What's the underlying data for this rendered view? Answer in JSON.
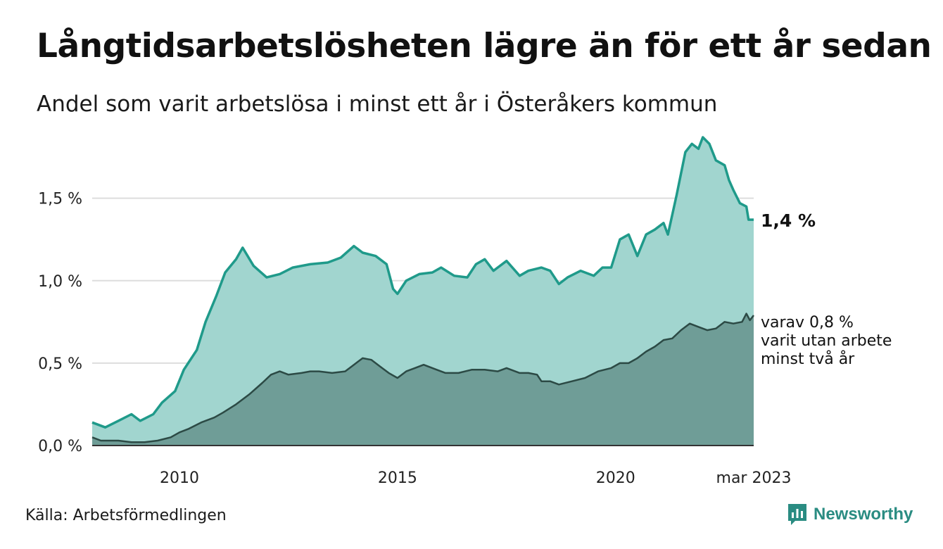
{
  "title": "Långtidsarbetslösheten lägre än för ett år sedan",
  "subtitle": "Andel som varit arbetslösa i minst ett år i Österåkers kommun",
  "source": "Källa: Arbetsförmedlingen",
  "brand": {
    "name": "Newsworthy",
    "icon": "newsworthy-logo-icon"
  },
  "colors": {
    "upper_fill": "#a1d5cf",
    "upper_line": "#1f9a8a",
    "lower_fill": "#6f9d97",
    "lower_line": "#2c4a45",
    "grid": "#dddddd",
    "baseline": "#333333",
    "brand": "#2a8c82"
  },
  "chart_data": {
    "type": "area",
    "title": "",
    "xlabel": "",
    "ylabel": "",
    "ylim": [
      0,
      1.9
    ],
    "yticks": [
      {
        "value": 0,
        "label": "0,0 %"
      },
      {
        "value": 0.5,
        "label": "0,5 %"
      },
      {
        "value": 1.0,
        "label": "1,0 %"
      },
      {
        "value": 1.5,
        "label": "1,5 %"
      }
    ],
    "xticks": [
      {
        "value": 2010.0,
        "label": "2010"
      },
      {
        "value": 2015.0,
        "label": "2015"
      },
      {
        "value": 2020.0,
        "label": "2020"
      },
      {
        "value": 2023.167,
        "label": "mar 2023"
      }
    ],
    "grid": true,
    "series": [
      {
        "name": "",
        "end_label": "1,4 %",
        "points": [
          [
            2008.0,
            0.14
          ],
          [
            2008.3,
            0.11
          ],
          [
            2008.6,
            0.15
          ],
          [
            2008.9,
            0.19
          ],
          [
            2009.1,
            0.15
          ],
          [
            2009.4,
            0.19
          ],
          [
            2009.6,
            0.26
          ],
          [
            2009.9,
            0.33
          ],
          [
            2010.1,
            0.46
          ],
          [
            2010.4,
            0.58
          ],
          [
            2010.6,
            0.75
          ],
          [
            2010.85,
            0.91
          ],
          [
            2011.05,
            1.05
          ],
          [
            2011.3,
            1.13
          ],
          [
            2011.45,
            1.2
          ],
          [
            2011.7,
            1.09
          ],
          [
            2012.0,
            1.02
          ],
          [
            2012.3,
            1.04
          ],
          [
            2012.6,
            1.08
          ],
          [
            2013.0,
            1.1
          ],
          [
            2013.4,
            1.11
          ],
          [
            2013.7,
            1.14
          ],
          [
            2014.0,
            1.21
          ],
          [
            2014.2,
            1.17
          ],
          [
            2014.5,
            1.15
          ],
          [
            2014.75,
            1.1
          ],
          [
            2014.9,
            0.95
          ],
          [
            2015.0,
            0.92
          ],
          [
            2015.2,
            1.0
          ],
          [
            2015.5,
            1.04
          ],
          [
            2015.8,
            1.05
          ],
          [
            2016.0,
            1.08
          ],
          [
            2016.3,
            1.03
          ],
          [
            2016.6,
            1.02
          ],
          [
            2016.8,
            1.1
          ],
          [
            2017.0,
            1.13
          ],
          [
            2017.2,
            1.06
          ],
          [
            2017.5,
            1.12
          ],
          [
            2017.8,
            1.03
          ],
          [
            2018.0,
            1.06
          ],
          [
            2018.3,
            1.08
          ],
          [
            2018.5,
            1.06
          ],
          [
            2018.7,
            0.98
          ],
          [
            2018.9,
            1.02
          ],
          [
            2019.2,
            1.06
          ],
          [
            2019.5,
            1.03
          ],
          [
            2019.7,
            1.08
          ],
          [
            2019.9,
            1.08
          ],
          [
            2020.1,
            1.25
          ],
          [
            2020.3,
            1.28
          ],
          [
            2020.5,
            1.15
          ],
          [
            2020.7,
            1.28
          ],
          [
            2020.9,
            1.31
          ],
          [
            2021.1,
            1.35
          ],
          [
            2021.2,
            1.28
          ],
          [
            2021.4,
            1.52
          ],
          [
            2021.6,
            1.78
          ],
          [
            2021.75,
            1.83
          ],
          [
            2021.9,
            1.8
          ],
          [
            2022.0,
            1.87
          ],
          [
            2022.15,
            1.83
          ],
          [
            2022.3,
            1.73
          ],
          [
            2022.5,
            1.7
          ],
          [
            2022.6,
            1.61
          ],
          [
            2022.7,
            1.55
          ],
          [
            2022.85,
            1.47
          ],
          [
            2023.0,
            1.45
          ],
          [
            2023.05,
            1.37
          ],
          [
            2023.167,
            1.37
          ]
        ]
      },
      {
        "name": "",
        "end_label_lines": [
          "varav 0,8 %",
          "varit utan arbete",
          "minst två år"
        ],
        "points": [
          [
            2008.0,
            0.05
          ],
          [
            2008.2,
            0.03
          ],
          [
            2008.6,
            0.03
          ],
          [
            2008.9,
            0.02
          ],
          [
            2009.2,
            0.02
          ],
          [
            2009.5,
            0.03
          ],
          [
            2009.8,
            0.05
          ],
          [
            2010.0,
            0.08
          ],
          [
            2010.2,
            0.1
          ],
          [
            2010.5,
            0.14
          ],
          [
            2010.8,
            0.17
          ],
          [
            2011.0,
            0.2
          ],
          [
            2011.3,
            0.25
          ],
          [
            2011.6,
            0.31
          ],
          [
            2011.9,
            0.38
          ],
          [
            2012.1,
            0.43
          ],
          [
            2012.3,
            0.45
          ],
          [
            2012.5,
            0.43
          ],
          [
            2012.8,
            0.44
          ],
          [
            2013.0,
            0.45
          ],
          [
            2013.2,
            0.45
          ],
          [
            2013.5,
            0.44
          ],
          [
            2013.8,
            0.45
          ],
          [
            2014.0,
            0.49
          ],
          [
            2014.2,
            0.53
          ],
          [
            2014.4,
            0.52
          ],
          [
            2014.6,
            0.48
          ],
          [
            2014.8,
            0.44
          ],
          [
            2015.0,
            0.41
          ],
          [
            2015.2,
            0.45
          ],
          [
            2015.4,
            0.47
          ],
          [
            2015.6,
            0.49
          ],
          [
            2015.9,
            0.46
          ],
          [
            2016.1,
            0.44
          ],
          [
            2016.4,
            0.44
          ],
          [
            2016.7,
            0.46
          ],
          [
            2017.0,
            0.46
          ],
          [
            2017.3,
            0.45
          ],
          [
            2017.5,
            0.47
          ],
          [
            2017.8,
            0.44
          ],
          [
            2018.0,
            0.44
          ],
          [
            2018.2,
            0.43
          ],
          [
            2018.3,
            0.39
          ],
          [
            2018.5,
            0.39
          ],
          [
            2018.7,
            0.37
          ],
          [
            2019.0,
            0.39
          ],
          [
            2019.3,
            0.41
          ],
          [
            2019.6,
            0.45
          ],
          [
            2019.9,
            0.47
          ],
          [
            2020.1,
            0.5
          ],
          [
            2020.3,
            0.5
          ],
          [
            2020.5,
            0.53
          ],
          [
            2020.7,
            0.57
          ],
          [
            2020.9,
            0.6
          ],
          [
            2021.1,
            0.64
          ],
          [
            2021.3,
            0.65
          ],
          [
            2021.5,
            0.7
          ],
          [
            2021.7,
            0.74
          ],
          [
            2021.9,
            0.72
          ],
          [
            2022.1,
            0.7
          ],
          [
            2022.3,
            0.71
          ],
          [
            2022.5,
            0.75
          ],
          [
            2022.7,
            0.74
          ],
          [
            2022.9,
            0.75
          ],
          [
            2023.0,
            0.8
          ],
          [
            2023.08,
            0.76
          ],
          [
            2023.167,
            0.79
          ]
        ]
      }
    ]
  }
}
